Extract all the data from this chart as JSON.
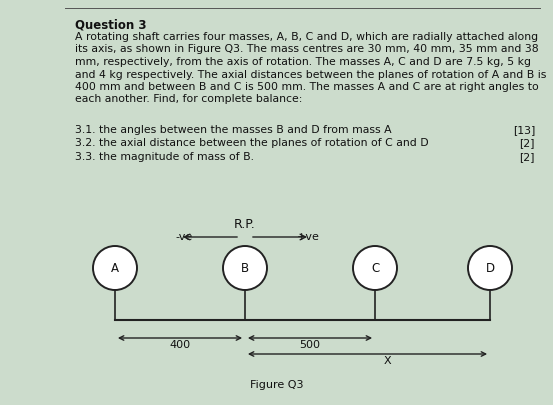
{
  "title": "Question 3",
  "body_lines": [
    "A rotating shaft carries four masses, A, B, C and D, which are radially attached along",
    "its axis, as shown in Figure Q3. The mass centres are 30 mm, 40 mm, 35 mm and 38",
    "mm, respectively, from the axis of rotation. The masses A, C and D are 7.5 kg, 5 kg",
    "and 4 kg respectively. The axial distances between the planes of rotation of A and B is",
    "400 mm and between B and C is 500 mm. The masses A and C are at right angles to",
    "each another. Find, for complete balance:"
  ],
  "questions": [
    {
      "num": "3.1. the angles between the masses B and D from mass A",
      "mark": "[13]"
    },
    {
      "num": "3.2. the axial distance between the planes of rotation of C and D",
      "mark": "[2]"
    },
    {
      "num": "3.3. the magnitude of mass of B.",
      "mark": "[2]"
    }
  ],
  "rp_label": "R.P.",
  "neg_label": "-ve",
  "pos_label": "+ve",
  "masses": [
    "A",
    "B",
    "C",
    "D"
  ],
  "dim_400": "400",
  "dim_500": "500",
  "dim_x": "X",
  "figure_label": "Figure Q3",
  "bg_color": "#ccdccc",
  "text_color": "#111111",
  "line_color": "#222222",
  "circle_color": "#ffffff",
  "circle_edge": "#222222",
  "title_fontsize": 8.5,
  "body_fontsize": 7.8,
  "q_fontsize": 7.8,
  "diagram_fontsize": 8.5
}
